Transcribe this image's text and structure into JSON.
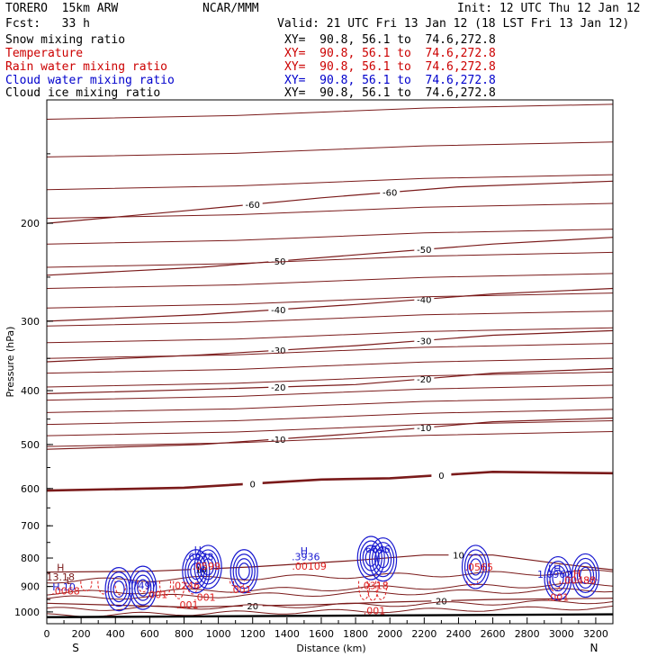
{
  "header": {
    "model": "TORERO  15km ARW",
    "source": "NCAR/MMM",
    "init": "Init: 12 UTC Thu 12 Jan 12",
    "fcst": "Fcst:   33 h",
    "valid": "Valid: 21 UTC Fri 13 Jan 12 (18 LST Fri 13 Jan 12)"
  },
  "legend": [
    {
      "label": "Snow mixing ratio",
      "xy": "XY=  90.8, 56.1 to  74.6,272.8",
      "color": "#000000"
    },
    {
      "label": "Temperature",
      "xy": "XY=  90.8, 56.1 to  74.6,272.8",
      "color": "#cc0000"
    },
    {
      "label": "Rain water mixing ratio",
      "xy": "XY=  90.8, 56.1 to  74.6,272.8",
      "color": "#cc0000"
    },
    {
      "label": "Cloud water mixing ratio",
      "xy": "XY=  90.8, 56.1 to  74.6,272.8",
      "color": "#0000cc"
    },
    {
      "label": "Cloud ice mixing ratio",
      "xy": "XY=  90.8, 56.1 to  74.6,272.8",
      "color": "#000000"
    }
  ],
  "colors": {
    "temperature": "#7a1a1a",
    "rain": "#e02020",
    "cloud_water": "#1a1ad0",
    "axis": "#000000"
  },
  "chart_data": {
    "type": "contour",
    "xlabel": "Distance (km)",
    "ylabel": "Pressure (hPa)",
    "xlim": [
      0,
      3300
    ],
    "ylim": [
      1050,
      120
    ],
    "y_scale": "log",
    "x_ticks": [
      0,
      100,
      200,
      300,
      400,
      500,
      600,
      700,
      800,
      900,
      1000,
      1100,
      1200,
      1300,
      1400,
      1500,
      1600,
      1700,
      1800,
      1900,
      2000,
      2100,
      2200,
      2300,
      2400,
      2500,
      2600,
      2700,
      2800,
      2900,
      3000,
      3100,
      3200
    ],
    "x_tick_labels": [
      "0",
      "200",
      "400",
      "600",
      "800",
      "1000",
      "1200",
      "1400",
      "1600",
      "1800",
      "2000",
      "2200",
      "2400",
      "2600",
      "2800",
      "3000",
      "3200"
    ],
    "y_ticks": [
      200,
      300,
      400,
      500,
      600,
      700,
      800,
      900,
      1000
    ],
    "end_labels": {
      "left": "S",
      "right": "N"
    },
    "temperature_isotherms": [
      {
        "label": "-60",
        "points": [
          [
            0,
            200
          ],
          [
            800,
            190
          ],
          [
            1600,
            180
          ],
          [
            2400,
            172
          ],
          [
            3300,
            168
          ]
        ]
      },
      {
        "label": "-50",
        "points": [
          [
            0,
            248
          ],
          [
            900,
            240
          ],
          [
            1800,
            228
          ],
          [
            2600,
            218
          ],
          [
            3300,
            212
          ]
        ]
      },
      {
        "label": "-40",
        "points": [
          [
            0,
            300
          ],
          [
            900,
            292
          ],
          [
            1800,
            280
          ],
          [
            2600,
            268
          ],
          [
            3300,
            262
          ]
        ]
      },
      {
        "label": "-30",
        "points": [
          [
            0,
            355
          ],
          [
            900,
            345
          ],
          [
            1800,
            332
          ],
          [
            2600,
            318
          ],
          [
            3300,
            312
          ]
        ]
      },
      {
        "label": "-20",
        "points": [
          [
            0,
            405
          ],
          [
            900,
            398
          ],
          [
            1800,
            390
          ],
          [
            2600,
            372
          ],
          [
            3300,
            365
          ]
        ]
      },
      {
        "label": "-10",
        "points": [
          [
            0,
            510
          ],
          [
            900,
            500
          ],
          [
            1800,
            478
          ],
          [
            2600,
            455
          ],
          [
            3300,
            448
          ]
        ]
      },
      {
        "label": "0",
        "points": [
          [
            0,
            605
          ],
          [
            800,
            598
          ],
          [
            1600,
            578
          ],
          [
            2000,
            575
          ],
          [
            2600,
            560
          ],
          [
            3300,
            563
          ]
        ]
      },
      {
        "label": "10",
        "points": [
          [
            0,
            848
          ],
          [
            600,
            845
          ],
          [
            1200,
            830
          ],
          [
            1800,
            808
          ],
          [
            2200,
            790
          ],
          [
            2600,
            790
          ],
          [
            3000,
            820
          ],
          [
            3300,
            840
          ]
        ]
      },
      {
        "label": "20",
        "points": [
          [
            0,
            965
          ],
          [
            800,
            980
          ],
          [
            1600,
            970
          ],
          [
            2000,
            960
          ],
          [
            2600,
            950
          ],
          [
            3300,
            945
          ]
        ]
      }
    ],
    "annotation_labels": [
      {
        "text": "H",
        "x": 80,
        "y": 845,
        "color": "#7a1a1a"
      },
      {
        "text": "13.18",
        "x": 80,
        "y": 878,
        "color": "#7a1a1a"
      },
      {
        "text": "L",
        "x": 130,
        "y": 892,
        "color": "#7a1a1a"
      },
      {
        "text": "H.10",
        "x": 100,
        "y": 915,
        "color": "#1a1ad0"
      },
      {
        "text": ".0068",
        "x": 110,
        "y": 930,
        "color": "#e02020"
      },
      {
        "text": ".001",
        "x": 640,
        "y": 945,
        "color": "#e02020"
      },
      {
        "text": ".001",
        "x": 820,
        "y": 985,
        "color": "#e02020"
      },
      {
        "text": ".001",
        "x": 920,
        "y": 955,
        "color": "#e02020"
      },
      {
        "text": ".001",
        "x": 1130,
        "y": 925,
        "color": "#e02020"
      },
      {
        "text": ".0246",
        "x": 810,
        "y": 910,
        "color": "#e02020"
      },
      {
        "text": ".7497",
        "x": 560,
        "y": 910,
        "color": "#1a1ad0"
      },
      {
        "text": "H",
        "x": 880,
        "y": 785,
        "color": "#1a1ad0"
      },
      {
        "text": ".6978",
        "x": 890,
        "y": 808,
        "color": "#1a1ad0"
      },
      {
        "text": ".0599",
        "x": 930,
        "y": 840,
        "color": "#e02020"
      },
      {
        "text": "H",
        "x": 1500,
        "y": 788,
        "color": "#1a1ad0"
      },
      {
        "text": ".3936",
        "x": 1510,
        "y": 808,
        "color": "#1a1ad0"
      },
      {
        "text": ".00109",
        "x": 1530,
        "y": 840,
        "color": "#e02020"
      },
      {
        "text": ".6646",
        "x": 1920,
        "y": 782,
        "color": "#1a1ad0"
      },
      {
        "text": ".0318",
        "x": 1910,
        "y": 910,
        "color": "#e02020"
      },
      {
        "text": ".001",
        "x": 1910,
        "y": 1010,
        "color": "#e02020"
      },
      {
        "text": ".0565",
        "x": 2520,
        "y": 843,
        "color": "#e02020"
      },
      {
        "text": "LH",
        "x": 2960,
        "y": 848,
        "color": "#1a1ad0"
      },
      {
        "text": "1.0962",
        "x": 2960,
        "y": 868,
        "color": "#1a1ad0"
      },
      {
        "text": "H",
        "x": 3090,
        "y": 865,
        "color": "#e02020"
      },
      {
        "text": ".00488",
        "x": 3100,
        "y": 890,
        "color": "#e02020"
      },
      {
        "text": ".001",
        "x": 2980,
        "y": 955,
        "color": "#e02020"
      }
    ],
    "cloud_water_cores": [
      {
        "x": 420,
        "p": 910
      },
      {
        "x": 560,
        "p": 905
      },
      {
        "x": 870,
        "p": 845
      },
      {
        "x": 940,
        "p": 830
      },
      {
        "x": 1150,
        "p": 845
      },
      {
        "x": 1890,
        "p": 800
      },
      {
        "x": 1960,
        "p": 805
      },
      {
        "x": 2500,
        "p": 830
      },
      {
        "x": 2980,
        "p": 870
      },
      {
        "x": 3140,
        "p": 860
      }
    ]
  }
}
